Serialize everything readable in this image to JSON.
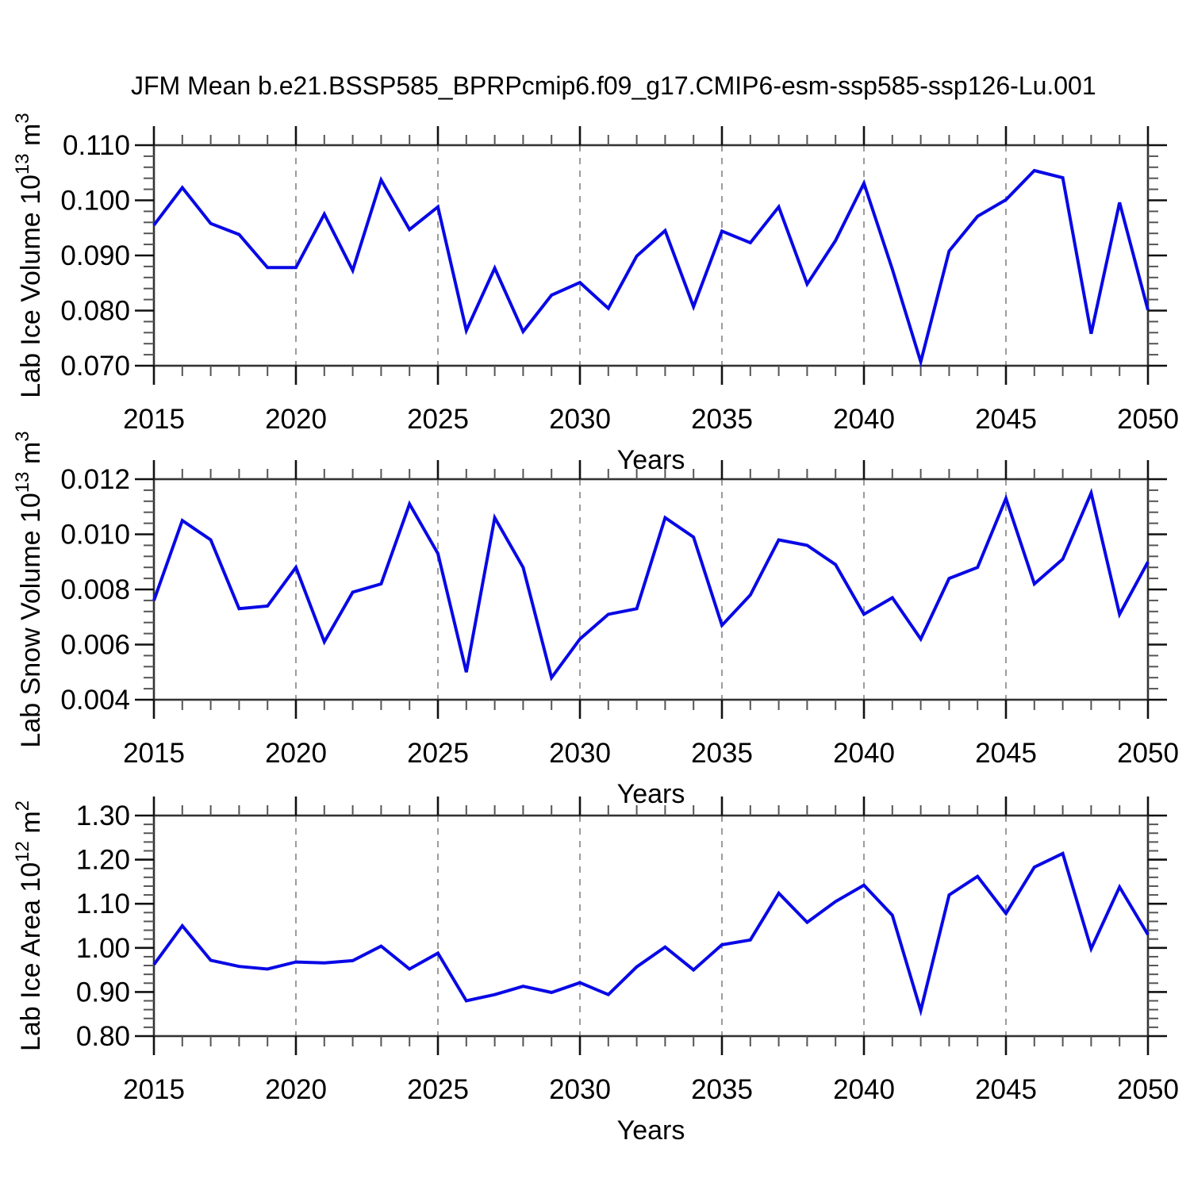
{
  "title": "JFM Mean b.e21.BSSP585_BPRPcmip6.f09_g17.CMIP6-esm-ssp585-ssp126-Lu.001",
  "colors": {
    "line": "#0808e6",
    "grid": "#9c9c9c",
    "axis_border": "#333333",
    "major_tick": "#111111",
    "minor_tick": "#555555",
    "text": "#000000"
  },
  "chart_data": [
    {
      "type": "line",
      "name": "lab-ice-volume",
      "ylabel_parts": [
        {
          "t": "Lab Ice Volume 10"
        },
        {
          "t": "13",
          "sup": true
        },
        {
          "t": " m"
        },
        {
          "t": "3",
          "sup": true
        }
      ],
      "xlabel": "Years",
      "xlim": [
        2015,
        2050
      ],
      "ylim": [
        0.07,
        0.11
      ],
      "x_major_step": 5,
      "grid_x": [
        2020,
        2025,
        2030,
        2035,
        2040,
        2045
      ],
      "x_ticks": [
        {
          "v": 2015,
          "label": "2015"
        },
        {
          "v": 2020,
          "label": "2020"
        },
        {
          "v": 2025,
          "label": "2025"
        },
        {
          "v": 2030,
          "label": "2030"
        },
        {
          "v": 2035,
          "label": "2035"
        },
        {
          "v": 2040,
          "label": "2040"
        },
        {
          "v": 2045,
          "label": "2045"
        },
        {
          "v": 2050,
          "label": "2050"
        }
      ],
      "y_ticks": [
        {
          "v": 0.07,
          "label": "0.070"
        },
        {
          "v": 0.08,
          "label": "0.080"
        },
        {
          "v": 0.09,
          "label": "0.090"
        },
        {
          "v": 0.1,
          "label": "0.100"
        },
        {
          "v": 0.11,
          "label": "0.110"
        }
      ],
      "y_minor_step": 0.002,
      "minors_per_major": 5,
      "x": [
        2015,
        2016,
        2017,
        2018,
        2019,
        2020,
        2021,
        2022,
        2023,
        2024,
        2025,
        2026,
        2027,
        2028,
        2029,
        2030,
        2031,
        2032,
        2033,
        2034,
        2035,
        2036,
        2037,
        2038,
        2039,
        2040,
        2041,
        2042,
        2043,
        2044,
        2045,
        2046,
        2047,
        2048,
        2049,
        2050
      ],
      "values": [
        0.0955,
        0.1023,
        0.0958,
        0.0938,
        0.0878,
        0.0878,
        0.0975,
        0.0873,
        0.1037,
        0.0947,
        0.0988,
        0.0764,
        0.0877,
        0.0762,
        0.0828,
        0.0851,
        0.0804,
        0.0899,
        0.0945,
        0.0807,
        0.0944,
        0.0923,
        0.0988,
        0.0848,
        0.0927,
        0.1031,
        0.0875,
        0.0707,
        0.0908,
        0.0971,
        0.1001,
        0.1054,
        0.1041,
        0.0758,
        0.0996,
        0.0801
      ]
    },
    {
      "type": "line",
      "name": "lab-snow-volume",
      "ylabel_parts": [
        {
          "t": "Lab Snow Volume 10"
        },
        {
          "t": "13",
          "sup": true
        },
        {
          "t": " m"
        },
        {
          "t": "3",
          "sup": true
        }
      ],
      "xlabel": "Years",
      "xlim": [
        2015,
        2050
      ],
      "ylim": [
        0.004,
        0.012
      ],
      "x_major_step": 5,
      "grid_x": [
        2020,
        2025,
        2030,
        2035,
        2040,
        2045
      ],
      "x_ticks": [
        {
          "v": 2015,
          "label": "2015"
        },
        {
          "v": 2020,
          "label": "2020"
        },
        {
          "v": 2025,
          "label": "2025"
        },
        {
          "v": 2030,
          "label": "2030"
        },
        {
          "v": 2035,
          "label": "2035"
        },
        {
          "v": 2040,
          "label": "2040"
        },
        {
          "v": 2045,
          "label": "2045"
        },
        {
          "v": 2050,
          "label": "2050"
        }
      ],
      "y_ticks": [
        {
          "v": 0.004,
          "label": "0.004"
        },
        {
          "v": 0.006,
          "label": "0.006"
        },
        {
          "v": 0.008,
          "label": "0.008"
        },
        {
          "v": 0.01,
          "label": "0.010"
        },
        {
          "v": 0.012,
          "label": "0.012"
        }
      ],
      "y_minor_step": 0.0004,
      "minors_per_major": 5,
      "x": [
        2015,
        2016,
        2017,
        2018,
        2019,
        2020,
        2021,
        2022,
        2023,
        2024,
        2025,
        2026,
        2027,
        2028,
        2029,
        2030,
        2031,
        2032,
        2033,
        2034,
        2035,
        2036,
        2037,
        2038,
        2039,
        2040,
        2041,
        2042,
        2043,
        2044,
        2045,
        2046,
        2047,
        2048,
        2049,
        2050
      ],
      "values": [
        0.0076,
        0.0105,
        0.0098,
        0.0073,
        0.0074,
        0.0088,
        0.0061,
        0.0079,
        0.0082,
        0.0111,
        0.0093,
        0.005,
        0.0106,
        0.0088,
        0.0048,
        0.0062,
        0.0071,
        0.0073,
        0.0106,
        0.0099,
        0.0067,
        0.0078,
        0.0098,
        0.0096,
        0.0089,
        0.0071,
        0.0077,
        0.0062,
        0.0084,
        0.0088,
        0.0113,
        0.0082,
        0.0091,
        0.0115,
        0.0071,
        0.009
      ]
    },
    {
      "type": "line",
      "name": "lab-ice-area",
      "ylabel_parts": [
        {
          "t": "Lab Ice Area 10"
        },
        {
          "t": "12",
          "sup": true
        },
        {
          "t": " m"
        },
        {
          "t": "2",
          "sup": true
        }
      ],
      "xlabel": "Years",
      "xlim": [
        2015,
        2050
      ],
      "ylim": [
        0.8,
        1.3
      ],
      "x_major_step": 5,
      "grid_x": [
        2020,
        2025,
        2030,
        2035,
        2040,
        2045
      ],
      "x_ticks": [
        {
          "v": 2015,
          "label": "2015"
        },
        {
          "v": 2020,
          "label": "2020"
        },
        {
          "v": 2025,
          "label": "2025"
        },
        {
          "v": 2030,
          "label": "2030"
        },
        {
          "v": 2035,
          "label": "2035"
        },
        {
          "v": 2040,
          "label": "2040"
        },
        {
          "v": 2045,
          "label": "2045"
        },
        {
          "v": 2050,
          "label": "2050"
        }
      ],
      "y_ticks": [
        {
          "v": 0.8,
          "label": "0.80"
        },
        {
          "v": 0.9,
          "label": "0.90"
        },
        {
          "v": 1.0,
          "label": "1.00"
        },
        {
          "v": 1.1,
          "label": "1.10"
        },
        {
          "v": 1.2,
          "label": "1.20"
        },
        {
          "v": 1.3,
          "label": "1.30"
        }
      ],
      "y_minor_step": 0.02,
      "minors_per_major": 5,
      "x": [
        2015,
        2016,
        2017,
        2018,
        2019,
        2020,
        2021,
        2022,
        2023,
        2024,
        2025,
        2026,
        2027,
        2028,
        2029,
        2030,
        2031,
        2032,
        2033,
        2034,
        2035,
        2036,
        2037,
        2038,
        2039,
        2040,
        2041,
        2042,
        2043,
        2044,
        2045,
        2046,
        2047,
        2048,
        2049,
        2050
      ],
      "values": [
        0.962,
        1.05,
        0.972,
        0.958,
        0.952,
        0.968,
        0.966,
        0.971,
        1.004,
        0.952,
        0.988,
        0.88,
        0.894,
        0.913,
        0.899,
        0.921,
        0.894,
        0.957,
        1.002,
        0.95,
        1.007,
        1.018,
        1.124,
        1.058,
        1.105,
        1.142,
        1.074,
        0.858,
        1.12,
        1.162,
        1.078,
        1.183,
        1.214,
        0.998,
        1.138,
        1.03
      ]
    }
  ]
}
